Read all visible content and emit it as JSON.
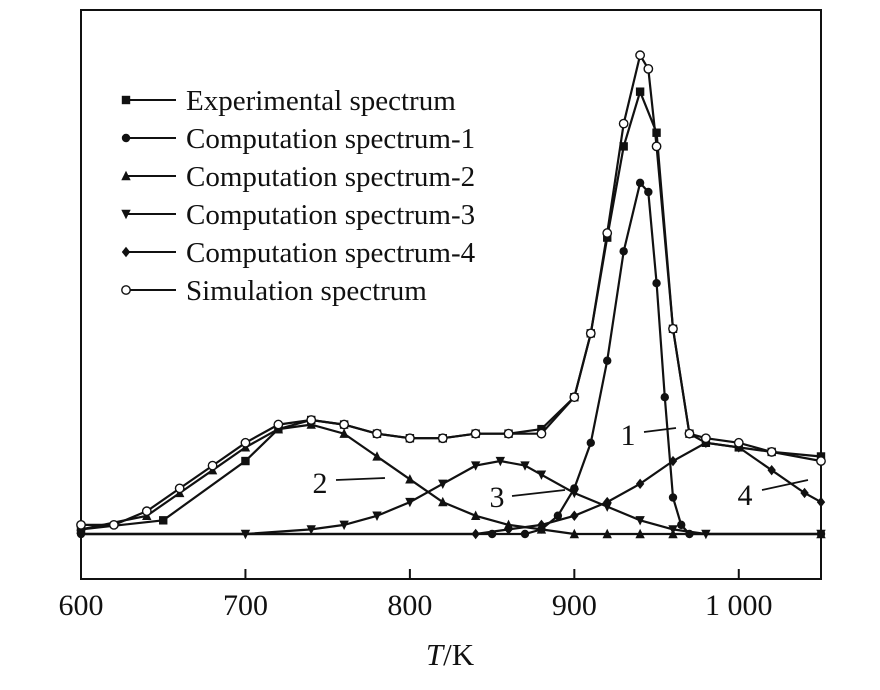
{
  "chart_data": {
    "type": "line",
    "xlabel_italic": "T",
    "xlabel_unit": "/K",
    "ylabel": "",
    "xlim": [
      600,
      1050
    ],
    "ylim": [
      0,
      100
    ],
    "xticks": [
      600,
      700,
      800,
      900,
      1000
    ],
    "xtick_labels": [
      "600",
      "700",
      "800",
      "900",
      "1 000"
    ],
    "grid": false,
    "legend_position": "top-left",
    "series": [
      {
        "name": "Experimental spectrum",
        "marker": "square",
        "x": [
          600,
          650,
          700,
          720,
          740,
          760,
          780,
          800,
          820,
          840,
          860,
          880,
          900,
          910,
          920,
          930,
          940,
          950,
          960,
          970,
          980,
          1000,
          1020,
          1050
        ],
        "y": [
          1,
          3,
          16,
          23,
          25,
          24,
          22,
          21,
          21,
          22,
          22,
          23,
          30,
          44,
          65,
          85,
          97,
          88,
          45,
          22,
          20,
          19,
          18,
          17
        ]
      },
      {
        "name": "Computation spectrum-1",
        "marker": "circle",
        "x": [
          600,
          850,
          870,
          880,
          890,
          900,
          910,
          920,
          930,
          940,
          945,
          950,
          955,
          960,
          965,
          970,
          1050
        ],
        "y": [
          0,
          0,
          0,
          1,
          4,
          10,
          20,
          38,
          62,
          77,
          75,
          55,
          30,
          8,
          2,
          0,
          0
        ]
      },
      {
        "name": "Computation spectrum-2",
        "marker": "triangle-up",
        "x": [
          600,
          640,
          660,
          680,
          700,
          720,
          740,
          760,
          780,
          800,
          820,
          840,
          860,
          880,
          900,
          920,
          940,
          960,
          1050
        ],
        "y": [
          1,
          4,
          9,
          14,
          19,
          23,
          24,
          22,
          17,
          12,
          7,
          4,
          2,
          1,
          0,
          0,
          0,
          0,
          0
        ]
      },
      {
        "name": "Computation spectrum-3",
        "marker": "triangle-down",
        "x": [
          600,
          700,
          740,
          760,
          780,
          800,
          820,
          840,
          855,
          870,
          880,
          900,
          920,
          940,
          960,
          980,
          1050
        ],
        "y": [
          0,
          0,
          1,
          2,
          4,
          7,
          11,
          15,
          16,
          15,
          13,
          9,
          6,
          3,
          1,
          0,
          0
        ]
      },
      {
        "name": "Computation spectrum-4",
        "marker": "diamond",
        "x": [
          600,
          840,
          860,
          880,
          900,
          920,
          940,
          960,
          980,
          1000,
          1020,
          1040,
          1050
        ],
        "y": [
          0,
          0,
          1,
          2,
          4,
          7,
          11,
          16,
          20,
          19,
          14,
          9,
          7
        ]
      },
      {
        "name": "Simulation spectrum",
        "marker": "open-circle",
        "x": [
          600,
          620,
          640,
          660,
          680,
          700,
          720,
          740,
          760,
          780,
          800,
          820,
          840,
          860,
          880,
          900,
          910,
          920,
          930,
          940,
          945,
          950,
          960,
          970,
          980,
          1000,
          1020,
          1050
        ],
        "y": [
          2,
          2,
          5,
          10,
          15,
          20,
          24,
          25,
          24,
          22,
          21,
          21,
          22,
          22,
          22,
          30,
          44,
          66,
          90,
          105,
          102,
          85,
          45,
          22,
          21,
          20,
          18,
          16
        ]
      }
    ],
    "annotations": [
      {
        "text": "1",
        "series": "Computation spectrum-1"
      },
      {
        "text": "2",
        "series": "Computation spectrum-2"
      },
      {
        "text": "3",
        "series": "Computation spectrum-3"
      },
      {
        "text": "4",
        "series": "Computation spectrum-4"
      }
    ]
  }
}
